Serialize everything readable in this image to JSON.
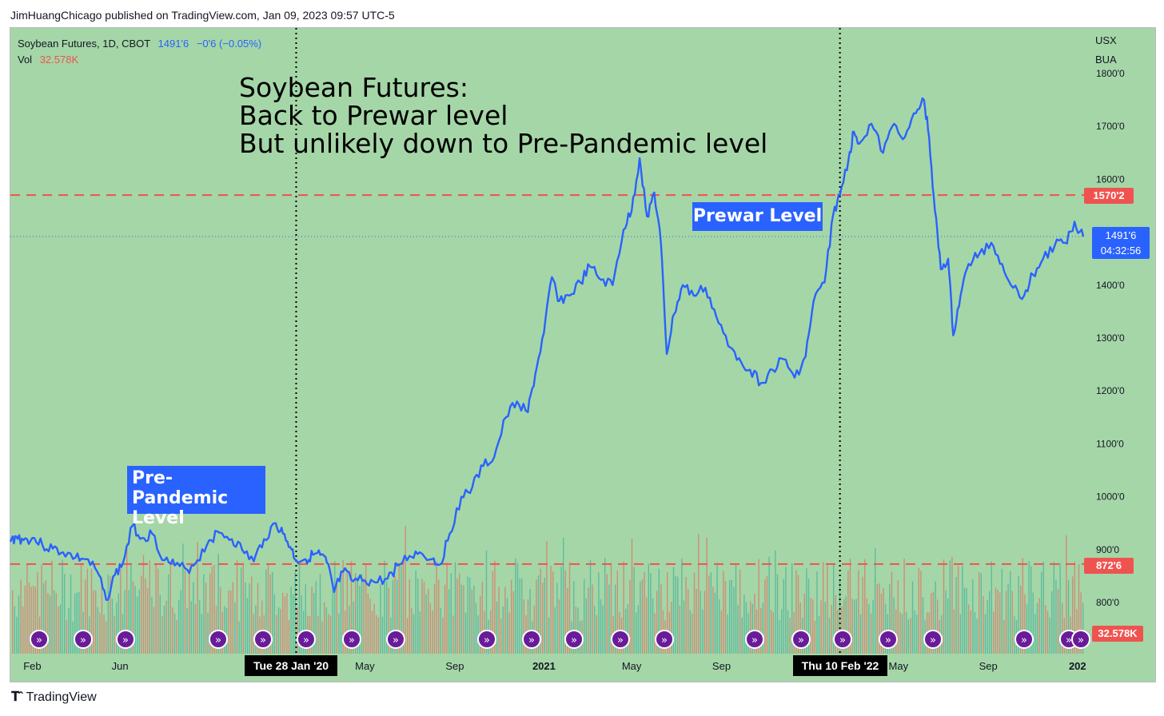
{
  "publisher": "JimHuangChicago published on TradingView.com, Jan 09, 2023 09:57 UTC-5",
  "legend": {
    "symbol": "Soybean Futures, 1D, CBOT",
    "price": "1491'6",
    "change": "−0'6 (−0.05%)",
    "vol_label": "Vol",
    "vol_value": "32.578K"
  },
  "annotations": {
    "headline": [
      "Soybean Futures:",
      "Back to Prewar level",
      "But unlikely down to Pre-Pandemic level"
    ],
    "pre_pandemic_label": [
      "Pre-Pandemic",
      "Level"
    ],
    "prewar_label": "Prewar Level"
  },
  "axis_units": [
    "USX",
    "BUA"
  ],
  "price_tags": {
    "upper_level": "1570'2",
    "lower_level": "872'6",
    "current_price": "1491'6",
    "countdown": "04:32:56",
    "volume": "32.578K"
  },
  "date_tags": [
    "Tue 28 Jan '20",
    "Thu 10 Feb '22"
  ],
  "footer_brand": "TradingView",
  "colors": {
    "background": "#a5d6a7",
    "line": "#2962ff",
    "level": "#ef5350",
    "vol_up": "#26a69a",
    "vol_down": "#ef5350"
  },
  "chart_data": {
    "type": "line",
    "ylim": [
      747,
      1800
    ],
    "y_ticks": [
      800,
      900,
      1000,
      1100,
      1200,
      1300,
      1400,
      1500,
      1600,
      1700,
      1800
    ],
    "y_tick_labels": [
      "800'0",
      "900'0",
      "1000'0",
      "1100'0",
      "1200'0",
      "1300'0",
      "1400'0",
      "",
      "1600'0",
      "1700'0",
      "1800'0"
    ],
    "x_ticks": [
      {
        "label": "Feb",
        "date": "2019-02-01"
      },
      {
        "label": "Jun",
        "date": "2019-06-01"
      },
      {
        "label": "May",
        "date": "2020-05-01"
      },
      {
        "label": "Sep",
        "date": "2020-09-01"
      },
      {
        "label": "2021",
        "date": "2021-01-01",
        "bold": true
      },
      {
        "label": "May",
        "date": "2021-05-01"
      },
      {
        "label": "Sep",
        "date": "2021-09-01"
      },
      {
        "label": "May",
        "date": "2022-05-01"
      },
      {
        "label": "Sep",
        "date": "2022-09-01"
      },
      {
        "label": "202",
        "date": "2023-01-01",
        "bold": true
      }
    ],
    "horizontal_levels": [
      1570.25,
      872.75
    ],
    "current_price": 1491.75,
    "vertical_markers": [
      "2020-01-28",
      "2022-02-10"
    ],
    "series": [
      {
        "points": [
          [
            "2019-01-02",
            915
          ],
          [
            "2019-01-10",
            925
          ],
          [
            "2019-01-20",
            918
          ],
          [
            "2019-02-01",
            922
          ],
          [
            "2019-02-15",
            908
          ],
          [
            "2019-03-01",
            902
          ],
          [
            "2019-03-15",
            895
          ],
          [
            "2019-04-01",
            885
          ],
          [
            "2019-04-15",
            882
          ],
          [
            "2019-05-01",
            858
          ],
          [
            "2019-05-13",
            805
          ],
          [
            "2019-05-25",
            852
          ],
          [
            "2019-06-05",
            875
          ],
          [
            "2019-06-18",
            945
          ],
          [
            "2019-07-01",
            922
          ],
          [
            "2019-07-15",
            930
          ],
          [
            "2019-08-01",
            880
          ],
          [
            "2019-08-15",
            870
          ],
          [
            "2019-09-01",
            862
          ],
          [
            "2019-09-15",
            880
          ],
          [
            "2019-10-01",
            918
          ],
          [
            "2019-10-15",
            932
          ],
          [
            "2019-11-01",
            920
          ],
          [
            "2019-11-15",
            900
          ],
          [
            "2019-12-01",
            878
          ],
          [
            "2019-12-15",
            920
          ],
          [
            "2019-12-31",
            950
          ],
          [
            "2020-01-10",
            930
          ],
          [
            "2020-01-20",
            905
          ],
          [
            "2020-01-28",
            880
          ],
          [
            "2020-02-10",
            882
          ],
          [
            "2020-02-20",
            890
          ],
          [
            "2020-03-01",
            890
          ],
          [
            "2020-03-10",
            875
          ],
          [
            "2020-03-20",
            820
          ],
          [
            "2020-04-01",
            858
          ],
          [
            "2020-04-15",
            840
          ],
          [
            "2020-05-01",
            842
          ],
          [
            "2020-05-15",
            838
          ],
          [
            "2020-06-01",
            845
          ],
          [
            "2020-06-15",
            870
          ],
          [
            "2020-07-01",
            888
          ],
          [
            "2020-07-15",
            895
          ],
          [
            "2020-08-01",
            882
          ],
          [
            "2020-08-12",
            872
          ],
          [
            "2020-08-25",
            930
          ],
          [
            "2020-09-10",
            1000
          ],
          [
            "2020-09-25",
            1018
          ],
          [
            "2020-10-10",
            1058
          ],
          [
            "2020-10-25",
            1075
          ],
          [
            "2020-11-10",
            1150
          ],
          [
            "2020-11-25",
            1180
          ],
          [
            "2020-12-10",
            1160
          ],
          [
            "2020-12-20",
            1230
          ],
          [
            "2021-01-01",
            1310
          ],
          [
            "2021-01-12",
            1415
          ],
          [
            "2021-01-22",
            1370
          ],
          [
            "2021-02-05",
            1380
          ],
          [
            "2021-02-20",
            1405
          ],
          [
            "2021-03-05",
            1435
          ],
          [
            "2021-03-20",
            1410
          ],
          [
            "2021-04-05",
            1400
          ],
          [
            "2021-04-20",
            1505
          ],
          [
            "2021-05-01",
            1540
          ],
          [
            "2021-05-12",
            1640
          ],
          [
            "2021-05-22",
            1530
          ],
          [
            "2021-06-01",
            1575
          ],
          [
            "2021-06-10",
            1480
          ],
          [
            "2021-06-18",
            1270
          ],
          [
            "2021-06-28",
            1345
          ],
          [
            "2021-07-10",
            1400
          ],
          [
            "2021-07-25",
            1380
          ],
          [
            "2021-08-10",
            1395
          ],
          [
            "2021-08-25",
            1340
          ],
          [
            "2021-09-10",
            1285
          ],
          [
            "2021-09-25",
            1262
          ],
          [
            "2021-10-10",
            1240
          ],
          [
            "2021-10-25",
            1215
          ],
          [
            "2021-11-10",
            1240
          ],
          [
            "2021-11-25",
            1260
          ],
          [
            "2021-12-10",
            1225
          ],
          [
            "2021-12-25",
            1265
          ],
          [
            "2022-01-05",
            1370
          ],
          [
            "2022-01-20",
            1405
          ],
          [
            "2022-02-01",
            1535
          ],
          [
            "2022-02-10",
            1570
          ],
          [
            "2022-02-22",
            1640
          ],
          [
            "2022-03-01",
            1690
          ],
          [
            "2022-03-10",
            1670
          ],
          [
            "2022-03-25",
            1705
          ],
          [
            "2022-04-10",
            1650
          ],
          [
            "2022-04-25",
            1705
          ],
          [
            "2022-05-10",
            1680
          ],
          [
            "2022-05-25",
            1725
          ],
          [
            "2022-06-05",
            1750
          ],
          [
            "2022-06-12",
            1680
          ],
          [
            "2022-06-20",
            1540
          ],
          [
            "2022-06-28",
            1430
          ],
          [
            "2022-07-08",
            1450
          ],
          [
            "2022-07-15",
            1305
          ],
          [
            "2022-07-25",
            1380
          ],
          [
            "2022-08-05",
            1440
          ],
          [
            "2022-08-20",
            1460
          ],
          [
            "2022-09-05",
            1480
          ],
          [
            "2022-09-20",
            1440
          ],
          [
            "2022-10-05",
            1395
          ],
          [
            "2022-10-20",
            1380
          ],
          [
            "2022-11-01",
            1420
          ],
          [
            "2022-11-15",
            1450
          ],
          [
            "2022-12-01",
            1475
          ],
          [
            "2022-12-15",
            1480
          ],
          [
            "2022-12-28",
            1520
          ],
          [
            "2023-01-09",
            1491.75
          ]
        ]
      }
    ]
  }
}
